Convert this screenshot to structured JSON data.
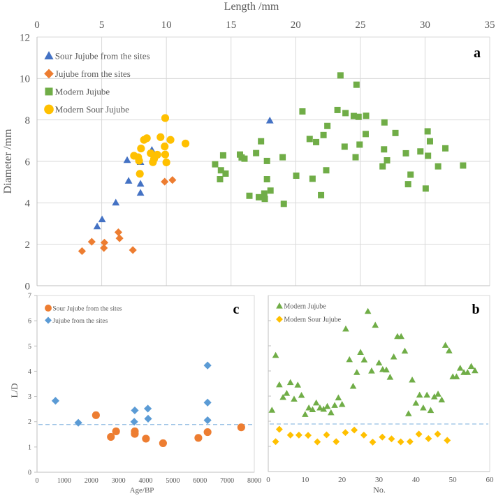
{
  "chart_data": [
    {
      "id": "a",
      "type": "scatter",
      "panel_label": "a",
      "xlabel": "Length /mm",
      "ylabel": "Diameter /mm",
      "xlim": [
        0,
        35
      ],
      "ylim": [
        0,
        12
      ],
      "xticks": [
        0,
        5,
        10,
        15,
        20,
        25,
        30,
        35
      ],
      "yticks": [
        0,
        2,
        4,
        6,
        8,
        10,
        12
      ],
      "x_axis_position": "top",
      "grid": true,
      "legend": "top-left",
      "series": [
        {
          "name": "Sour Jujube from the sites",
          "marker": "triangle",
          "color": "#4472C4",
          "points": [
            [
              6.97,
              6.06
            ],
            [
              8.88,
              6.55
            ],
            [
              8.0,
              5.97
            ],
            [
              7.08,
              5.06
            ],
            [
              8.0,
              4.92
            ],
            [
              8.0,
              4.48
            ],
            [
              6.09,
              4.01
            ],
            [
              5.03,
              3.2
            ],
            [
              4.65,
              2.86
            ],
            [
              18.0,
              7.97
            ]
          ]
        },
        {
          "name": "Jujube from the sites",
          "marker": "diamond",
          "color": "#ED7D31",
          "points": [
            [
              9.87,
              5.02
            ],
            [
              10.47,
              5.1
            ],
            [
              6.29,
              2.58
            ],
            [
              6.38,
              2.29
            ],
            [
              4.23,
              2.12
            ],
            [
              5.21,
              2.08
            ],
            [
              5.17,
              1.82
            ],
            [
              3.48,
              1.67
            ],
            [
              7.41,
              1.72
            ]
          ]
        },
        {
          "name": "Modern Jujube",
          "marker": "square",
          "color": "#70AD47",
          "points": [
            [
              13.77,
              5.86
            ],
            [
              14.39,
              6.29
            ],
            [
              14.22,
              5.57
            ],
            [
              14.58,
              5.41
            ],
            [
              14.15,
              5.14
            ],
            [
              15.69,
              6.33
            ],
            [
              15.82,
              6.19
            ],
            [
              16.04,
              6.13
            ],
            [
              16.94,
              6.4
            ],
            [
              17.32,
              6.97
            ],
            [
              17.78,
              6.02
            ],
            [
              17.78,
              5.14
            ],
            [
              18.99,
              6.2
            ],
            [
              16.42,
              4.34
            ],
            [
              17.15,
              4.27
            ],
            [
              17.57,
              4.45
            ],
            [
              17.61,
              4.19
            ],
            [
              18.05,
              4.59
            ],
            [
              19.08,
              3.95
            ],
            [
              20.04,
              5.31
            ],
            [
              20.52,
              8.41
            ],
            [
              21.08,
              7.08
            ],
            [
              21.58,
              6.93
            ],
            [
              21.3,
              5.16
            ],
            [
              22.15,
              7.27
            ],
            [
              22.45,
              7.71
            ],
            [
              22.36,
              5.57
            ],
            [
              21.96,
              4.37
            ],
            [
              23.23,
              8.48
            ],
            [
              23.85,
              8.33
            ],
            [
              24.49,
              8.19
            ],
            [
              24.86,
              8.15
            ],
            [
              25.44,
              8.2
            ],
            [
              25.41,
              7.32
            ],
            [
              24.94,
              6.81
            ],
            [
              24.63,
              6.2
            ],
            [
              23.78,
              6.71
            ],
            [
              26.86,
              7.88
            ],
            [
              27.71,
              7.37
            ],
            [
              26.83,
              6.58
            ],
            [
              27.06,
              6.05
            ],
            [
              26.72,
              5.76
            ],
            [
              28.52,
              6.39
            ],
            [
              29.64,
              6.48
            ],
            [
              30.2,
              7.45
            ],
            [
              30.38,
              6.97
            ],
            [
              30.23,
              6.27
            ],
            [
              31.57,
              6.63
            ],
            [
              31.01,
              5.76
            ],
            [
              32.94,
              5.8
            ],
            [
              28.88,
              5.36
            ],
            [
              28.69,
              4.9
            ],
            [
              30.05,
              4.69
            ],
            [
              23.46,
              10.15
            ],
            [
              24.7,
              9.7
            ]
          ]
        },
        {
          "name": "Modern Sour Jujube",
          "marker": "circle",
          "color": "#FFC000",
          "points": [
            [
              9.91,
              8.09
            ],
            [
              8.27,
              7.04
            ],
            [
              8.49,
              7.12
            ],
            [
              9.55,
              7.17
            ],
            [
              10.32,
              7.04
            ],
            [
              11.48,
              6.86
            ],
            [
              9.87,
              6.72
            ],
            [
              8.04,
              6.62
            ],
            [
              7.5,
              6.27
            ],
            [
              7.82,
              6.2
            ],
            [
              7.89,
              6.03
            ],
            [
              8.79,
              6.39
            ],
            [
              9.3,
              6.32
            ],
            [
              9.05,
              6.12
            ],
            [
              8.96,
              5.96
            ],
            [
              9.91,
              6.33
            ],
            [
              10.0,
              5.95
            ],
            [
              7.95,
              5.4
            ]
          ]
        }
      ]
    },
    {
      "id": "c",
      "type": "scatter",
      "panel_label": "c",
      "xlabel": "Age/BP",
      "ylabel": "L/D",
      "xlim": [
        0,
        8000
      ],
      "ylim": [
        0,
        7
      ],
      "xticks": [
        0,
        1000,
        2000,
        3000,
        4000,
        5000,
        6000,
        7000,
        8000
      ],
      "yticks": [
        0,
        1,
        2,
        3,
        4,
        5,
        6,
        7
      ],
      "reference_line": 1.89,
      "legend": "top-left",
      "series": [
        {
          "name": "Sour Jujube from the sites",
          "marker": "circle",
          "color": "#ED7D31",
          "points": [
            [
              2170,
              2.26
            ],
            [
              2720,
              1.4
            ],
            [
              2910,
              1.62
            ],
            [
              3600,
              1.62
            ],
            [
              3600,
              1.52
            ],
            [
              4010,
              1.33
            ],
            [
              4640,
              1.15
            ],
            [
              5940,
              1.36
            ],
            [
              6280,
              1.59
            ],
            [
              7520,
              1.78
            ]
          ]
        },
        {
          "name": "Jujube from the sites",
          "marker": "diamond",
          "color": "#5B9BD5",
          "points": [
            [
              680,
              2.83
            ],
            [
              1520,
              1.96
            ],
            [
              3580,
              2.0
            ],
            [
              3600,
              2.45
            ],
            [
              4080,
              2.52
            ],
            [
              4090,
              2.12
            ],
            [
              6280,
              4.23
            ],
            [
              6280,
              2.76
            ],
            [
              6280,
              2.06
            ]
          ]
        }
      ]
    },
    {
      "id": "b",
      "type": "scatter",
      "panel_label": "b",
      "xlabel": "No.",
      "ylabel": "",
      "xlim": [
        0,
        60
      ],
      "ylim": [
        0,
        7
      ],
      "xticks": [
        0,
        10,
        20,
        30,
        40,
        50,
        60
      ],
      "yticks": [],
      "reference_line": 1.89,
      "legend": "top-left",
      "series": [
        {
          "name": "Modern Jujube",
          "marker": "triangle",
          "color": "#70AD47",
          "points": [
            [
              1,
              2.44
            ],
            [
              2,
              4.62
            ],
            [
              3,
              3.45
            ],
            [
              4,
              2.95
            ],
            [
              5,
              3.11
            ],
            [
              6,
              3.54
            ],
            [
              7,
              2.88
            ],
            [
              8,
              3.44
            ],
            [
              9,
              3.03
            ],
            [
              10,
              2.27
            ],
            [
              11,
              2.53
            ],
            [
              12,
              2.46
            ],
            [
              13,
              2.73
            ],
            [
              14,
              2.53
            ],
            [
              15,
              2.48
            ],
            [
              16,
              2.59
            ],
            [
              17,
              2.34
            ],
            [
              18,
              2.63
            ],
            [
              19,
              2.93
            ],
            [
              20,
              2.67
            ],
            [
              21,
              5.67
            ],
            [
              22,
              4.45
            ],
            [
              23,
              3.39
            ],
            [
              24,
              3.94
            ],
            [
              25,
              4.74
            ],
            [
              26,
              4.44
            ],
            [
              27,
              6.37
            ],
            [
              28,
              4.0
            ],
            [
              29,
              5.82
            ],
            [
              30,
              4.32
            ],
            [
              31,
              4.06
            ],
            [
              32,
              4.04
            ],
            [
              33,
              3.75
            ],
            [
              34,
              4.56
            ],
            [
              35,
              5.37
            ],
            [
              36,
              5.37
            ],
            [
              37,
              4.79
            ],
            [
              38,
              2.3
            ],
            [
              39,
              3.64
            ],
            [
              40,
              2.72
            ],
            [
              41,
              3.04
            ],
            [
              42,
              2.53
            ],
            [
              43,
              3.04
            ],
            [
              44,
              2.43
            ],
            [
              45,
              2.97
            ],
            [
              46,
              3.08
            ],
            [
              47,
              2.85
            ],
            [
              48,
              5.02
            ],
            [
              49,
              4.8
            ],
            [
              50,
              3.77
            ],
            [
              51,
              3.77
            ],
            [
              52,
              4.11
            ],
            [
              53,
              3.94
            ],
            [
              54,
              3.94
            ],
            [
              55,
              4.18
            ],
            [
              56,
              4.01
            ]
          ]
        },
        {
          "name": "Modern Sour Jujube",
          "marker": "diamond",
          "color": "#FFC000",
          "points": [
            [
              2,
              1.19
            ],
            [
              3,
              1.68
            ],
            [
              6,
              1.45
            ],
            [
              8.3,
              1.45
            ],
            [
              10.8,
              1.44
            ],
            [
              13.3,
              1.18
            ],
            [
              15.8,
              1.46
            ],
            [
              18.4,
              1.19
            ],
            [
              20.9,
              1.55
            ],
            [
              23.3,
              1.65
            ],
            [
              25.9,
              1.45
            ],
            [
              28.3,
              1.17
            ],
            [
              30.9,
              1.37
            ],
            [
              33.4,
              1.3
            ],
            [
              35.9,
              1.18
            ],
            [
              38.4,
              1.19
            ],
            [
              40.8,
              1.49
            ],
            [
              43.4,
              1.31
            ],
            [
              45.9,
              1.49
            ],
            [
              48.5,
              1.24
            ]
          ]
        }
      ]
    }
  ]
}
